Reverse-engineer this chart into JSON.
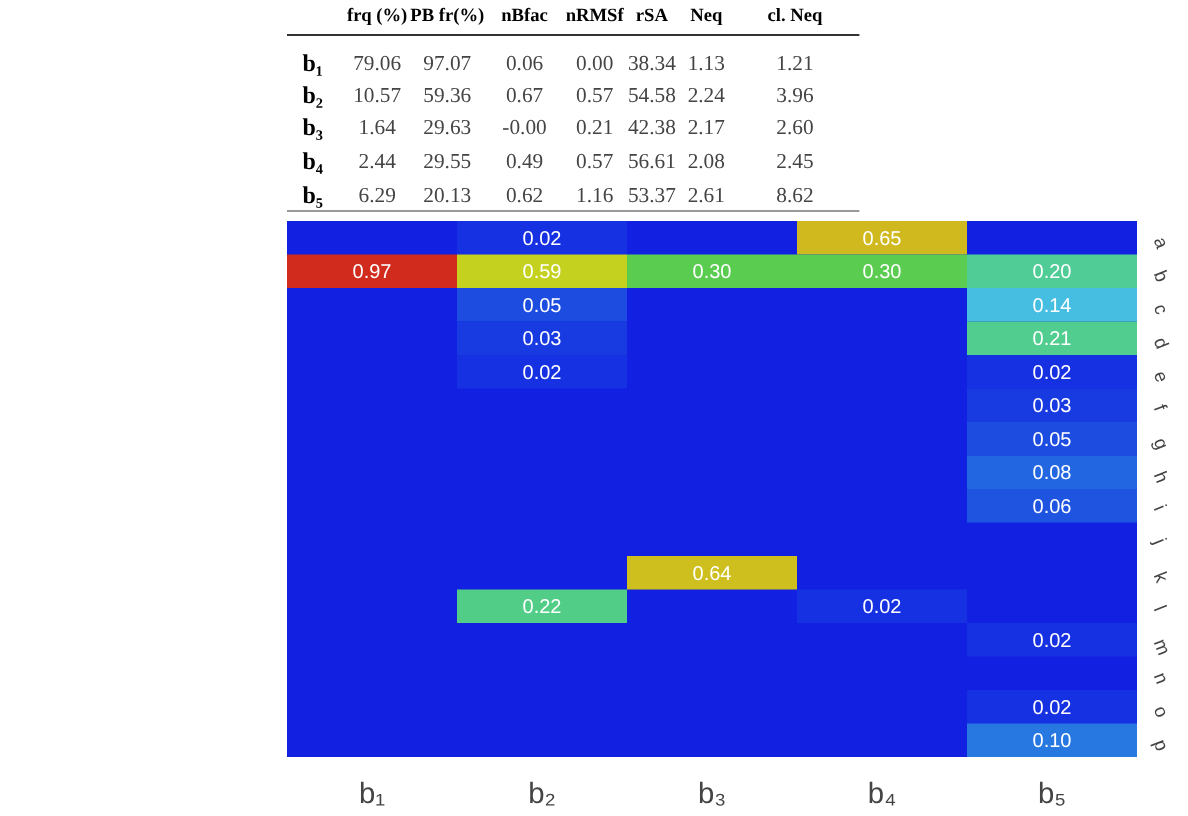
{
  "chart_data": [
    {
      "type": "heatmap",
      "categories": [
        "frq (%)",
        "PB fr(%)",
        "nBfac",
        "nRMSf",
        "rSA",
        "Neq",
        "cl. Neq"
      ],
      "y_categories": [
        "b₁",
        "b₂",
        "b₃",
        "b₄",
        "b₅"
      ],
      "cells": [
        [
          79.06,
          97.07,
          0.06,
          0.0,
          38.34,
          1.13,
          1.21
        ],
        [
          10.57,
          59.36,
          0.67,
          0.57,
          54.58,
          2.24,
          3.96
        ],
        [
          1.64,
          29.63,
          -0.0,
          0.21,
          42.38,
          2.17,
          2.6
        ],
        [
          2.44,
          29.55,
          0.49,
          0.57,
          56.61,
          2.08,
          2.45
        ],
        [
          6.29,
          20.13,
          0.62,
          1.16,
          53.37,
          2.61,
          8.62
        ]
      ],
      "cell_labels": [
        [
          "79.06",
          "97.07",
          "0.06",
          "0.00",
          "38.34",
          "1.13",
          "1.21"
        ],
        [
          "10.57",
          "59.36",
          "0.67",
          "0.57",
          "54.58",
          "2.24",
          "3.96"
        ],
        [
          "1.64",
          "29.63",
          "-0.00",
          "0.21",
          "42.38",
          "2.17",
          "2.60"
        ],
        [
          "2.44",
          "29.55",
          "0.49",
          "0.57",
          "56.61",
          "2.08",
          "2.45"
        ],
        [
          "6.29",
          "20.13",
          "0.62",
          "1.16",
          "53.37",
          "2.61",
          "8.62"
        ]
      ],
      "data_labels": true
    },
    {
      "type": "heatmap",
      "categories": [
        "b₁",
        "b₂",
        "b₃",
        "b₄",
        "b₅"
      ],
      "y_categories": [
        "a",
        "b",
        "c",
        "d",
        "e",
        "f",
        "g",
        "h",
        "i",
        "j",
        "k",
        "l",
        "m",
        "n",
        "o",
        "p"
      ],
      "cells": [
        [
          null,
          0.02,
          null,
          0.65,
          null
        ],
        [
          0.97,
          0.59,
          0.3,
          0.3,
          0.2
        ],
        [
          null,
          0.05,
          null,
          null,
          0.14
        ],
        [
          null,
          0.03,
          null,
          null,
          0.21
        ],
        [
          null,
          0.02,
          null,
          null,
          0.02
        ],
        [
          null,
          null,
          null,
          null,
          0.03
        ],
        [
          null,
          null,
          null,
          null,
          0.05
        ],
        [
          null,
          null,
          null,
          null,
          0.08
        ],
        [
          null,
          null,
          null,
          null,
          0.06
        ],
        [
          null,
          null,
          null,
          null,
          null
        ],
        [
          null,
          null,
          0.64,
          null,
          null
        ],
        [
          null,
          0.22,
          null,
          0.02,
          null
        ],
        [
          null,
          null,
          null,
          null,
          0.02
        ],
        [
          null,
          null,
          null,
          null,
          null
        ],
        [
          null,
          null,
          null,
          null,
          0.02
        ],
        [
          null,
          null,
          null,
          null,
          0.1
        ]
      ],
      "cell_labels": [
        [
          null,
          "0.02",
          null,
          "0.65",
          null
        ],
        [
          "0.97",
          "0.59",
          "0.30",
          "0.30",
          "0.20"
        ],
        [
          null,
          "0.05",
          null,
          null,
          "0.14"
        ],
        [
          null,
          "0.03",
          null,
          null,
          "0.21"
        ],
        [
          null,
          "0.02",
          null,
          null,
          "0.02"
        ],
        [
          null,
          null,
          null,
          null,
          "0.03"
        ],
        [
          null,
          null,
          null,
          null,
          "0.05"
        ],
        [
          null,
          null,
          null,
          null,
          "0.08"
        ],
        [
          null,
          null,
          null,
          null,
          "0.06"
        ],
        [
          null,
          null,
          null,
          null,
          null
        ],
        [
          null,
          null,
          "0.64",
          null,
          null
        ],
        [
          null,
          "0.22",
          null,
          "0.02",
          null
        ],
        [
          null,
          null,
          null,
          null,
          "0.02"
        ],
        [
          null,
          null,
          null,
          null,
          null
        ],
        [
          null,
          null,
          null,
          null,
          "0.02"
        ],
        [
          null,
          null,
          null,
          null,
          "0.10"
        ]
      ],
      "data_labels": true
    }
  ]
}
